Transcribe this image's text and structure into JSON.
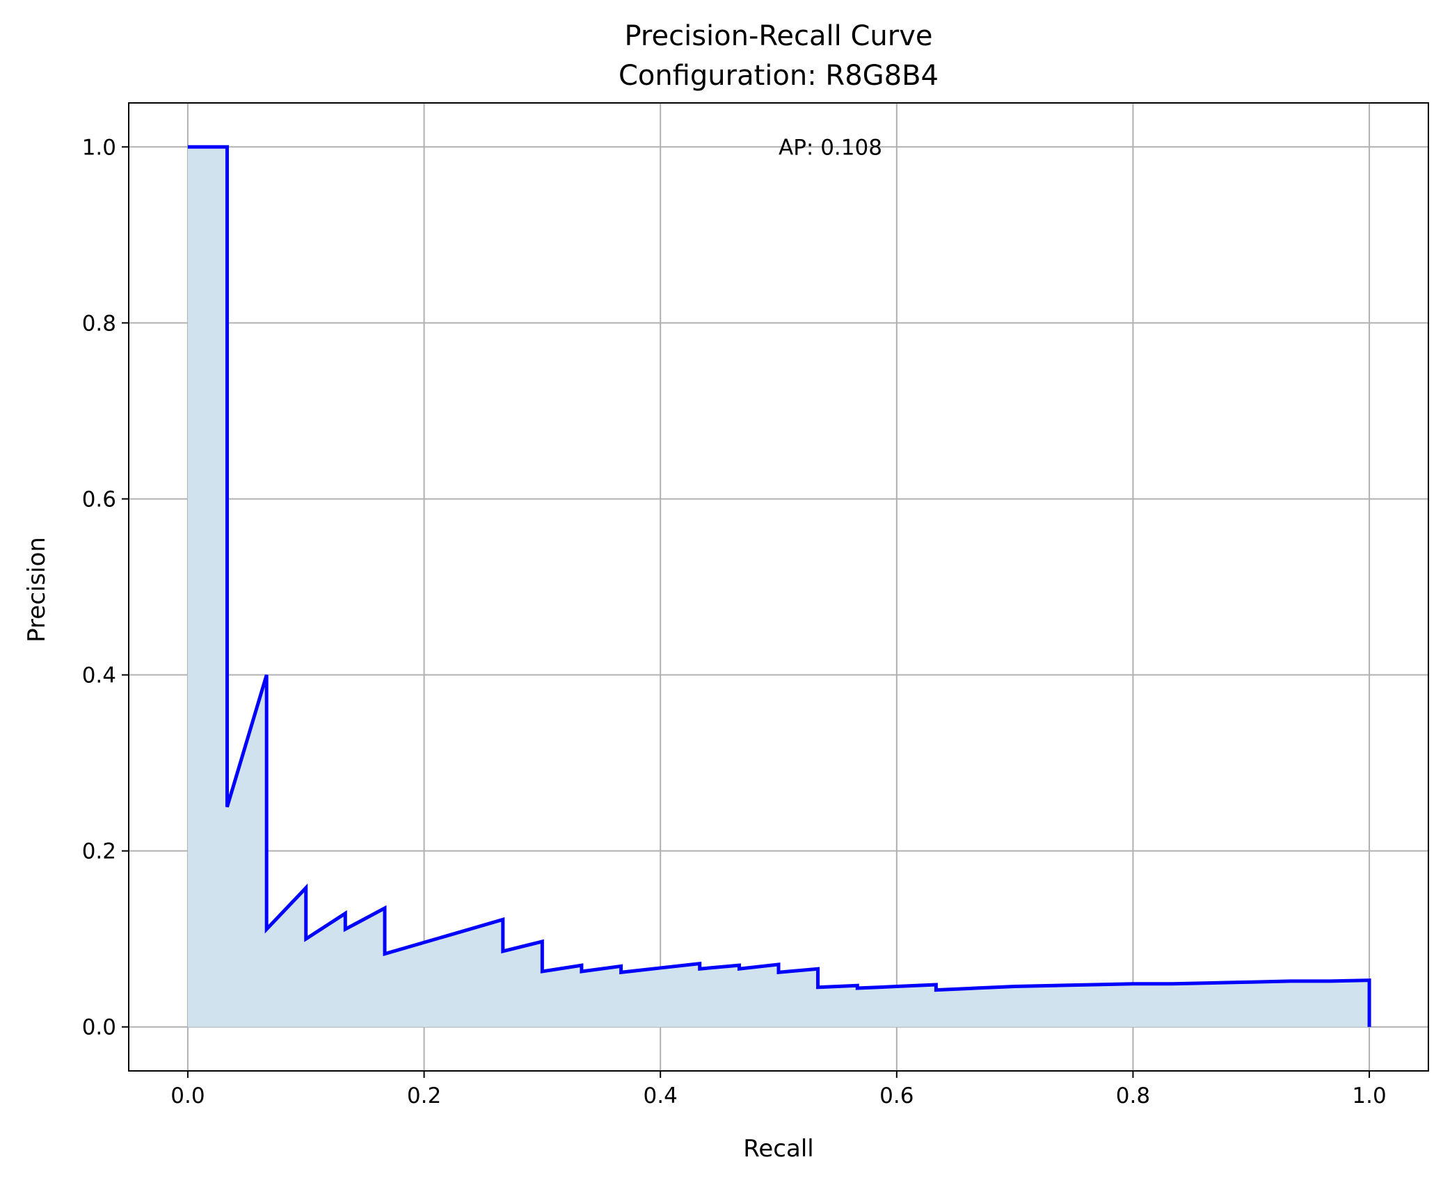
{
  "chart_data": {
    "type": "line",
    "title": "Precision-Recall Curve",
    "subtitle": "Configuration: R8G8B4",
    "xlabel": "Recall",
    "ylabel": "Precision",
    "xlim": [
      -0.05,
      1.05
    ],
    "ylim": [
      -0.05,
      1.05
    ],
    "xticks": [
      0.0,
      0.2,
      0.4,
      0.6,
      0.8,
      1.0
    ],
    "xtick_labels": [
      "0.0",
      "0.2",
      "0.4",
      "0.6",
      "0.8",
      "1.0"
    ],
    "yticks": [
      0.0,
      0.2,
      0.4,
      0.6,
      0.8,
      1.0
    ],
    "ytick_labels": [
      "0.0",
      "0.2",
      "0.4",
      "0.6",
      "0.8",
      "1.0"
    ],
    "grid": true,
    "line_color": "#0000ff",
    "fill_color": "#d1e2ef",
    "annotation": {
      "text": "AP: 0.108",
      "x": 0.5,
      "y": 1.0
    },
    "series": [
      {
        "recall": [
          0.0,
          0.0333,
          0.0333,
          0.0667,
          0.0667,
          0.1,
          0.1,
          0.1333,
          0.1333,
          0.1667,
          0.1667,
          0.2,
          0.2667,
          0.2667,
          0.3,
          0.3,
          0.3333,
          0.3333,
          0.3667,
          0.3667,
          0.4,
          0.4333,
          0.4333,
          0.4667,
          0.4667,
          0.5,
          0.5,
          0.5333,
          0.5333,
          0.5667,
          0.5667,
          0.6,
          0.6333,
          0.6333,
          0.6667,
          0.7,
          0.7333,
          0.7667,
          0.8,
          0.8333,
          0.8667,
          0.9,
          0.9333,
          0.9667,
          1.0,
          1.0
        ],
        "precision": [
          1.0,
          1.0,
          0.25,
          0.4,
          0.111,
          0.158,
          0.1,
          0.129,
          0.111,
          0.135,
          0.083,
          0.096,
          0.122,
          0.086,
          0.097,
          0.063,
          0.07,
          0.063,
          0.069,
          0.062,
          0.067,
          0.072,
          0.066,
          0.07,
          0.066,
          0.071,
          0.062,
          0.066,
          0.045,
          0.047,
          0.044,
          0.046,
          0.048,
          0.042,
          0.044,
          0.046,
          0.047,
          0.048,
          0.049,
          0.049,
          0.05,
          0.051,
          0.052,
          0.052,
          0.053,
          0.0
        ]
      }
    ]
  }
}
